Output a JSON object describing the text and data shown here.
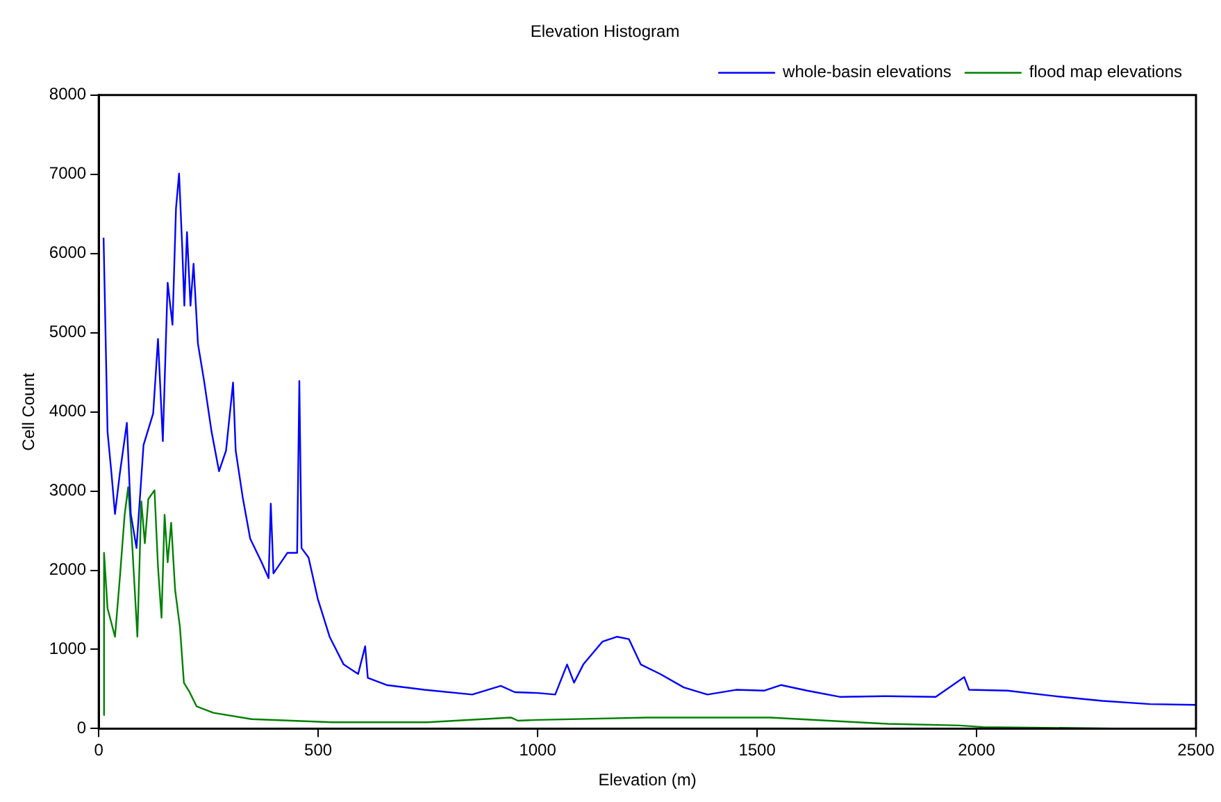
{
  "chart_data": {
    "type": "line",
    "title": "Elevation Histogram",
    "xlabel": "Elevation (m)",
    "ylabel": "Cell Count",
    "xlim": [
      0,
      2500
    ],
    "xticks": [
      0,
      500,
      1000,
      1500,
      2000,
      2500
    ],
    "ylim": [
      0,
      8000
    ],
    "yticks": [
      0,
      1000,
      2000,
      3000,
      4000,
      5000,
      6000,
      7000,
      8000
    ],
    "grid": false,
    "legend": "top right",
    "marker": "none",
    "line_style": "solid",
    "series": [
      {
        "name": "whole-basin elevations",
        "color": "#0000ff",
        "x": [
          11,
          17,
          20,
          29,
          37,
          48,
          64,
          73,
          86,
          102,
          124,
          135,
          146,
          157,
          168,
          176,
          183,
          190,
          195,
          201,
          209,
          216,
          226,
          240,
          257,
          274,
          290,
          306,
          312,
          328,
          345,
          371,
          387,
          392,
          398,
          430,
          452,
          457,
          462,
          478,
          499,
          526,
          558,
          591,
          607,
          613,
          656,
          742,
          851,
          916,
          948,
          1000,
          1040,
          1067,
          1083,
          1104,
          1148,
          1181,
          1208,
          1235,
          1279,
          1333,
          1387,
          1452,
          1517,
          1555,
          1614,
          1690,
          1798,
          1907,
          1972,
          1983,
          2070,
          2178,
          2287,
          2395,
          2499
        ],
        "values": [
          6200,
          4570,
          3750,
          3220,
          2710,
          3220,
          3860,
          2710,
          2280,
          3580,
          3980,
          4920,
          3630,
          5630,
          5100,
          6570,
          7010,
          6100,
          5340,
          6270,
          5340,
          5870,
          4860,
          4390,
          3750,
          3250,
          3510,
          4370,
          3510,
          2920,
          2400,
          2100,
          1900,
          2840,
          1960,
          2220,
          2220,
          4390,
          2280,
          2160,
          1640,
          1160,
          810,
          690,
          1040,
          640,
          550,
          490,
          430,
          540,
          460,
          450,
          430,
          810,
          580,
          810,
          1100,
          1160,
          1130,
          810,
          690,
          520,
          430,
          490,
          480,
          550,
          480,
          400,
          410,
          400,
          650,
          490,
          480,
          410,
          350,
          310,
          300
        ]
      },
      {
        "name": "flood map elevations",
        "color": "#008000",
        "x": [
          11,
          12,
          20,
          37,
          48,
          59,
          67,
          76,
          88,
          97,
          105,
          113,
          127,
          135,
          143,
          150,
          157,
          165,
          174,
          185,
          194,
          207,
          223,
          261,
          348,
          532,
          749,
          939,
          955,
          1000,
          1250,
          1530,
          1798,
          1961,
          2015,
          2340
        ],
        "values": [
          170,
          2220,
          1520,
          1160,
          1900,
          2700,
          3050,
          2340,
          1160,
          2870,
          2340,
          2900,
          3010,
          2040,
          1400,
          2700,
          2100,
          2600,
          1750,
          1280,
          580,
          460,
          280,
          200,
          120,
          80,
          80,
          140,
          100,
          110,
          140,
          140,
          60,
          40,
          20,
          0
        ]
      }
    ]
  }
}
